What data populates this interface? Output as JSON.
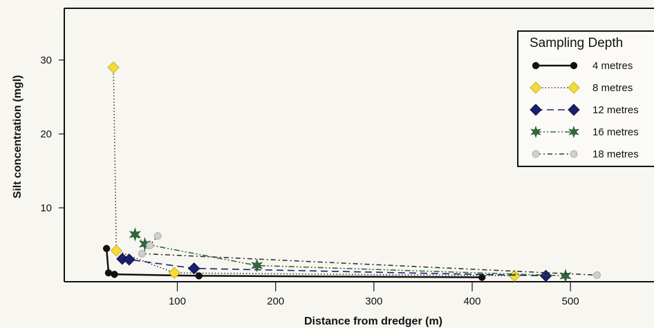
{
  "chart_data": {
    "type": "line",
    "xlabel": "Distance from dredger (m)",
    "ylabel": "Silt concentration (mgl)",
    "xlim": [
      -15,
      585
    ],
    "ylim": [
      0,
      37
    ],
    "x_ticks": [
      100,
      200,
      300,
      400,
      500
    ],
    "y_ticks": [
      10,
      20,
      30
    ],
    "grid": false,
    "legend": {
      "title": "Sampling Depth",
      "position": "top-right"
    },
    "series": [
      {
        "name": "4 metres",
        "color": "#111111",
        "marker": "circle",
        "line_style": "solid",
        "points": [
          [
            28,
            4.5
          ],
          [
            30,
            1.2
          ],
          [
            36,
            1.0
          ],
          [
            122,
            0.8
          ],
          [
            410,
            0.6
          ]
        ]
      },
      {
        "name": "8 metres",
        "color": "#f2dc3a",
        "marker": "diamond",
        "line_style": "dotted",
        "points": [
          [
            35,
            29
          ],
          [
            38,
            4.2
          ],
          [
            97,
            1.2
          ],
          [
            443,
            0.8
          ]
        ]
      },
      {
        "name": "12 metres",
        "color": "#1c1f6e",
        "marker": "diamond",
        "line_style": "dashed",
        "points": [
          [
            44,
            3.1
          ],
          [
            51,
            3.0
          ],
          [
            117,
            1.8
          ],
          [
            475,
            0.8
          ]
        ]
      },
      {
        "name": "16 metres",
        "color": "#2e6b3a",
        "marker": "star",
        "line_style": "dashdotdot",
        "points": [
          [
            57,
            6.4
          ],
          [
            67,
            5.1
          ],
          [
            181,
            2.2
          ],
          [
            495,
            0.8
          ]
        ]
      },
      {
        "name": "18 metres",
        "color": "#cfcfcf",
        "marker": "circle",
        "line_style": "dashdot",
        "points": [
          [
            80,
            6.2
          ],
          [
            72,
            4.9
          ],
          [
            64,
            3.8
          ],
          [
            527,
            0.9
          ]
        ]
      }
    ]
  }
}
